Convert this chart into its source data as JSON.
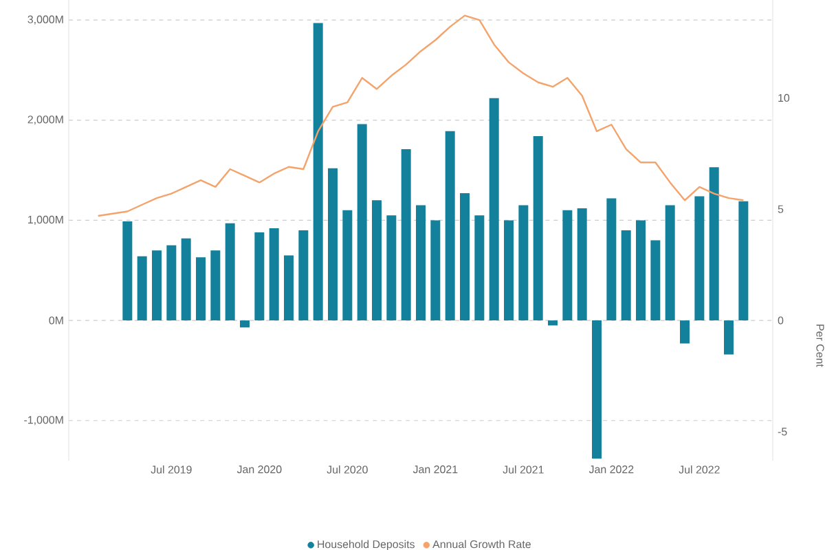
{
  "chart_data": {
    "type": "bar",
    "y2label": "Per Cent",
    "xlim": [
      "2018-12",
      "2022-12"
    ],
    "xticks": [
      {
        "value": "2019-07",
        "label": "Jul 2019"
      },
      {
        "value": "2020-01",
        "label": "Jan 2020"
      },
      {
        "value": "2020-07",
        "label": "Jul 2020"
      },
      {
        "value": "2021-01",
        "label": "Jan 2021"
      },
      {
        "value": "2021-07",
        "label": "Jul 2021"
      },
      {
        "value": "2022-01",
        "label": "Jan 2022"
      },
      {
        "value": "2022-07",
        "label": "Jul 2022"
      }
    ],
    "ylim": [
      -1400,
      3200
    ],
    "yticks": [
      {
        "value": -1000,
        "label": "-1,000M"
      },
      {
        "value": 0,
        "label": "0M"
      },
      {
        "value": 1000,
        "label": "1,000M"
      },
      {
        "value": 2000,
        "label": "2,000M"
      },
      {
        "value": 3000,
        "label": "3,000M"
      }
    ],
    "y2lim": [
      -6.3,
      14.4
    ],
    "y2ticks": [
      -5,
      0,
      5,
      10
    ],
    "grid": "y",
    "legend": "bottom",
    "series": [
      {
        "name": "Household Deposits",
        "color": "#13809c",
        "x": [
          "2019-04",
          "2019-05",
          "2019-06",
          "2019-07",
          "2019-08",
          "2019-09",
          "2019-10",
          "2019-11",
          "2019-12",
          "2020-01",
          "2020-02",
          "2020-03",
          "2020-04",
          "2020-05",
          "2020-06",
          "2020-07",
          "2020-08",
          "2020-09",
          "2020-10",
          "2020-11",
          "2020-12",
          "2021-01",
          "2021-02",
          "2021-03",
          "2021-04",
          "2021-05",
          "2021-06",
          "2021-07",
          "2021-08",
          "2021-09",
          "2021-10",
          "2021-11",
          "2021-12",
          "2022-01",
          "2022-02",
          "2022-03",
          "2022-04",
          "2022-05",
          "2022-06",
          "2022-07",
          "2022-08",
          "2022-09",
          "2022-10"
        ],
        "values": [
          990,
          640,
          700,
          750,
          820,
          630,
          700,
          970,
          -70,
          880,
          920,
          650,
          900,
          2970,
          1520,
          1100,
          1960,
          1200,
          1050,
          1710,
          1150,
          1000,
          1890,
          1270,
          1050,
          2220,
          1000,
          1150,
          1840,
          -50,
          1100,
          1120,
          -1380,
          1220,
          900,
          1000,
          800,
          1150,
          -230,
          1240,
          1530,
          -340,
          1190
        ]
      },
      {
        "name": "Annual Growth Rate",
        "type": "line",
        "axis": "y2",
        "color": "#f4a36b",
        "x": [
          "2019-02",
          "2019-03",
          "2019-04",
          "2019-05",
          "2019-06",
          "2019-07",
          "2019-08",
          "2019-09",
          "2019-10",
          "2019-11",
          "2019-12",
          "2020-01",
          "2020-02",
          "2020-03",
          "2020-04",
          "2020-05",
          "2020-06",
          "2020-07",
          "2020-08",
          "2020-09",
          "2020-10",
          "2020-11",
          "2020-12",
          "2021-01",
          "2021-02",
          "2021-03",
          "2021-04",
          "2021-05",
          "2021-06",
          "2021-07",
          "2021-08",
          "2021-09",
          "2021-10",
          "2021-11",
          "2021-12",
          "2022-01",
          "2022-02",
          "2022-03",
          "2022-04",
          "2022-05",
          "2022-06",
          "2022-07",
          "2022-08",
          "2022-09",
          "2022-10"
        ],
        "values": [
          4.7,
          4.8,
          4.9,
          5.2,
          5.5,
          5.7,
          6.0,
          6.3,
          6.0,
          6.8,
          6.5,
          6.2,
          6.6,
          6.9,
          6.8,
          8.5,
          9.6,
          9.8,
          10.9,
          10.4,
          11.0,
          11.5,
          12.1,
          12.6,
          13.2,
          13.7,
          13.5,
          12.4,
          11.6,
          11.1,
          10.7,
          10.5,
          10.9,
          10.1,
          8.5,
          8.8,
          7.7,
          7.1,
          7.1,
          6.2,
          5.4,
          6.0,
          5.7,
          5.5,
          5.4
        ]
      }
    ]
  }
}
